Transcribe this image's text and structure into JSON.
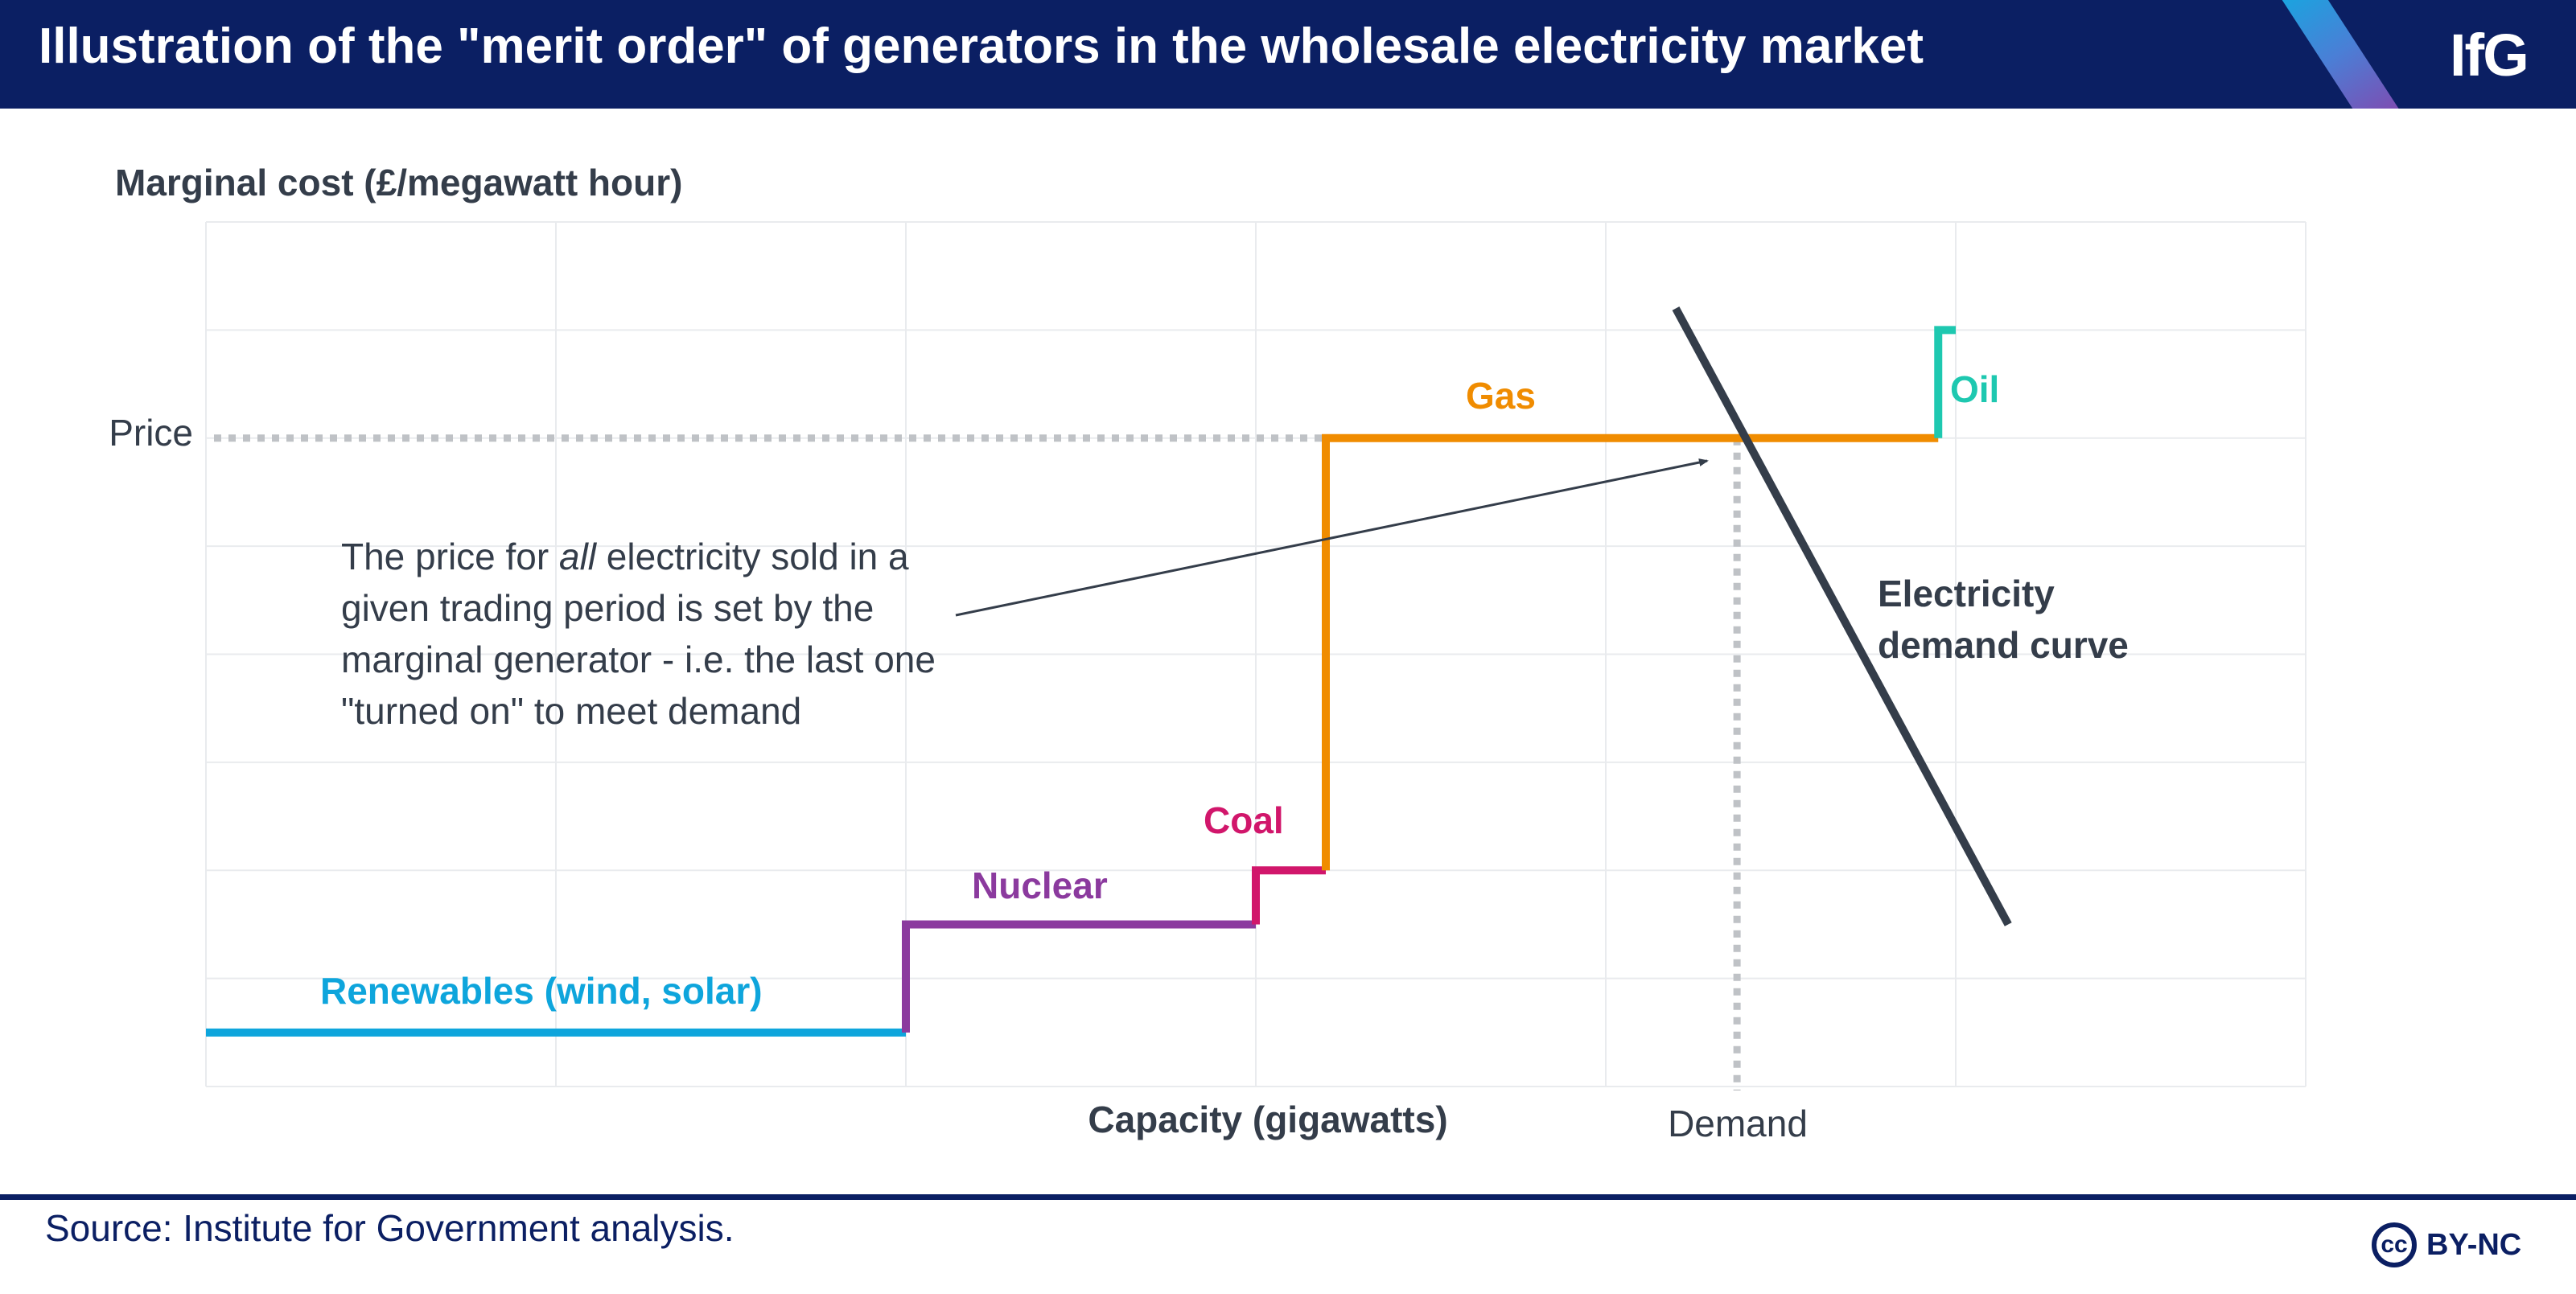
{
  "header": {
    "title": "Illustration of the \"merit order\" of generators in the wholesale electricity market",
    "logo": "IfG"
  },
  "chart_data": {
    "type": "line",
    "title": "Illustration of the \"merit order\" of generators in the wholesale electricity market",
    "ylabel": "Marginal cost (£/megawatt hour)",
    "xlabel": "Capacity (gigawatts)",
    "xlim": [
      0,
      12
    ],
    "ylim": [
      0,
      8
    ],
    "grid": true,
    "legend": "none",
    "series": [
      {
        "name": "Renewables (wind, solar)",
        "color": "#0ea5dc",
        "points": [
          [
            0,
            0.5
          ],
          [
            4,
            0.5
          ]
        ]
      },
      {
        "name": "Nuclear",
        "color": "#8b3a9e",
        "points": [
          [
            4,
            0.5
          ],
          [
            4,
            1.5
          ],
          [
            6,
            1.5
          ]
        ]
      },
      {
        "name": "Coal",
        "color": "#d1166b",
        "points": [
          [
            6,
            1.5
          ],
          [
            6,
            2.0
          ],
          [
            6.4,
            2.0
          ]
        ]
      },
      {
        "name": "Gas",
        "color": "#f08c00",
        "points": [
          [
            6.4,
            2.0
          ],
          [
            6.4,
            6.0
          ],
          [
            9.9,
            6.0
          ]
        ]
      },
      {
        "name": "Oil",
        "color": "#1ec8b0",
        "points": [
          [
            9.9,
            6.0
          ],
          [
            9.9,
            7.0
          ],
          [
            10.0,
            7.0
          ]
        ]
      }
    ],
    "demand_curve": {
      "name": "Electricity demand curve",
      "color": "#343d4a",
      "points": [
        [
          8.4,
          7.2
        ],
        [
          10.3,
          1.5
        ]
      ]
    },
    "price_line": {
      "label": "Price",
      "y": 6.0
    },
    "demand_line": {
      "label": "Demand",
      "x": 8.75
    },
    "series_labels": {
      "renewables": "Renewables (wind, solar)",
      "nuclear": "Nuclear",
      "coal": "Coal",
      "gas": "Gas",
      "oil": "Oil",
      "demand_curve_line1": "Electricity",
      "demand_curve_line2": "demand curve"
    },
    "annotation": {
      "text_before": "The price for ",
      "text_emphasis": "all",
      "text_after": " electricity sold in a given trading period is set by the marginal generator - i.e. the last one \"turned on\" to meet demand"
    }
  },
  "footer": {
    "source": "Source: Institute for Government analysis.",
    "license_icon": "cc",
    "license": "BY-NC"
  },
  "colors": {
    "brand_navy": "#0b1f63",
    "grid": "#e9ebee",
    "reference_lines": "#bfc2c6",
    "text": "#343d4a"
  }
}
